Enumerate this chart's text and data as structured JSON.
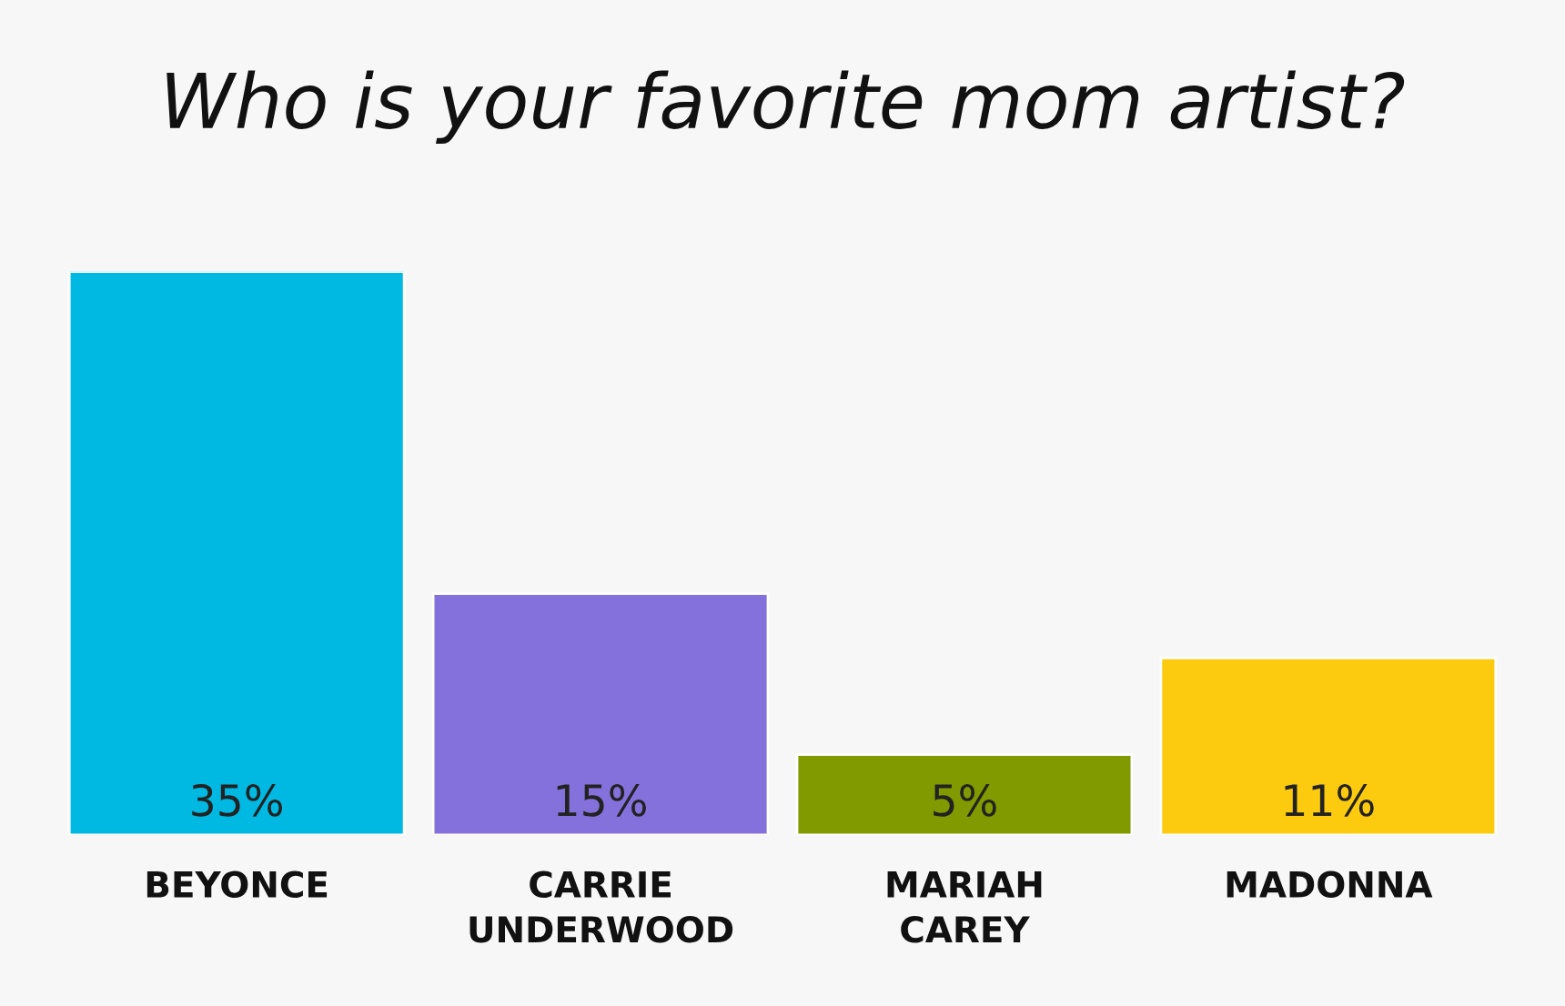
{
  "chart_data": {
    "type": "bar",
    "title": "Who is your favorite mom artist?",
    "categories": [
      "BEYONCE",
      "CARRIE\nUNDERWOOD",
      "MARIAH\nCAREY",
      "MADONNA"
    ],
    "values": [
      35,
      15,
      5,
      11
    ],
    "colors": [
      "#00b9e3",
      "#8471db",
      "#809a00",
      "#fcca0e"
    ],
    "value_labels": [
      "35%",
      "15%",
      "5%",
      "11%"
    ],
    "grid": false,
    "legend": false
  }
}
